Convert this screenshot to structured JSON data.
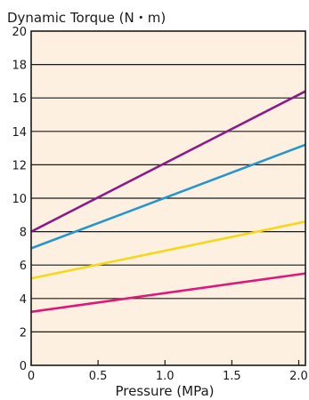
{
  "chart_data": {
    "type": "line",
    "title": "",
    "xlabel": "Pressure (MPa)",
    "ylabel": "Dynamic Torque (N・m)",
    "xlim": [
      0,
      2.05
    ],
    "ylim": [
      0,
      20
    ],
    "x_ticks": [
      0,
      0.5,
      1.0,
      1.5,
      2.0
    ],
    "x_tick_labels": [
      "0",
      "0.5",
      "1.0",
      "1.5",
      "2.0"
    ],
    "y_ticks": [
      0,
      2,
      4,
      6,
      8,
      10,
      12,
      14,
      16,
      18,
      20
    ],
    "y_tick_labels": [
      "0",
      "2",
      "4",
      "6",
      "8",
      "10",
      "12",
      "14",
      "16",
      "18",
      "20"
    ],
    "grid": "horizontal",
    "background": "#fdf0e0",
    "series": [
      {
        "color": "#8b1a8b",
        "x": [
          0,
          2.05
        ],
        "y": [
          8.0,
          16.4
        ]
      },
      {
        "color": "#2596d0",
        "x": [
          0,
          2.05
        ],
        "y": [
          7.0,
          13.2
        ]
      },
      {
        "color": "#f5d818",
        "x": [
          0,
          2.05
        ],
        "y": [
          5.2,
          8.6
        ]
      },
      {
        "color": "#e0177a",
        "x": [
          0,
          2.05
        ],
        "y": [
          3.2,
          5.5
        ]
      }
    ]
  }
}
